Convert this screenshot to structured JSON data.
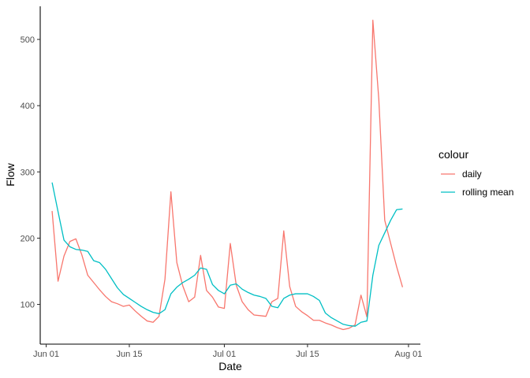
{
  "chart_data": {
    "type": "line",
    "xlabel": "Date",
    "ylabel": "Flow",
    "x_ticks": [
      {
        "date": "2021-06-01",
        "label": "Jun 01"
      },
      {
        "date": "2021-06-15",
        "label": "Jun 15"
      },
      {
        "date": "2021-07-01",
        "label": "Jul 01"
      },
      {
        "date": "2021-07-15",
        "label": "Jul 15"
      },
      {
        "date": "2021-08-01",
        "label": "Aug 01"
      }
    ],
    "y_ticks": [
      100,
      200,
      300,
      400,
      500
    ],
    "ylim": [
      40,
      550
    ],
    "xlim": [
      "2021-05-31",
      "2021-08-03"
    ],
    "grid": false,
    "legend": {
      "title": "colour",
      "position": "right"
    },
    "series": [
      {
        "name": "daily",
        "color": "#F8766D",
        "points": [
          [
            "2021-06-02",
            241
          ],
          [
            "2021-06-03",
            135
          ],
          [
            "2021-06-04",
            173
          ],
          [
            "2021-06-05",
            195
          ],
          [
            "2021-06-06",
            199
          ],
          [
            "2021-06-07",
            175
          ],
          [
            "2021-06-08",
            144
          ],
          [
            "2021-06-09",
            133
          ],
          [
            "2021-06-10",
            122
          ],
          [
            "2021-06-11",
            112
          ],
          [
            "2021-06-12",
            104
          ],
          [
            "2021-06-13",
            101
          ],
          [
            "2021-06-14",
            97
          ],
          [
            "2021-06-15",
            99
          ],
          [
            "2021-06-16",
            90
          ],
          [
            "2021-06-17",
            82
          ],
          [
            "2021-06-18",
            75
          ],
          [
            "2021-06-19",
            73
          ],
          [
            "2021-06-20",
            82
          ],
          [
            "2021-06-21",
            138
          ],
          [
            "2021-06-22",
            270
          ],
          [
            "2021-06-23",
            163
          ],
          [
            "2021-06-24",
            128
          ],
          [
            "2021-06-25",
            104
          ],
          [
            "2021-06-26",
            111
          ],
          [
            "2021-06-27",
            174
          ],
          [
            "2021-06-28",
            121
          ],
          [
            "2021-06-29",
            111
          ],
          [
            "2021-06-30",
            96
          ],
          [
            "2021-07-01",
            94
          ],
          [
            "2021-07-02",
            192
          ],
          [
            "2021-07-03",
            129
          ],
          [
            "2021-07-04",
            104
          ],
          [
            "2021-07-05",
            92
          ],
          [
            "2021-07-06",
            84
          ],
          [
            "2021-07-07",
            83
          ],
          [
            "2021-07-08",
            82
          ],
          [
            "2021-07-09",
            104
          ],
          [
            "2021-07-10",
            109
          ],
          [
            "2021-07-11",
            211
          ],
          [
            "2021-07-12",
            127
          ],
          [
            "2021-07-13",
            97
          ],
          [
            "2021-07-14",
            89
          ],
          [
            "2021-07-15",
            83
          ],
          [
            "2021-07-16",
            76
          ],
          [
            "2021-07-17",
            76
          ],
          [
            "2021-07-18",
            72
          ],
          [
            "2021-07-19",
            69
          ],
          [
            "2021-07-20",
            65
          ],
          [
            "2021-07-21",
            62
          ],
          [
            "2021-07-22",
            64
          ],
          [
            "2021-07-23",
            69
          ],
          [
            "2021-07-24",
            114
          ],
          [
            "2021-07-25",
            81
          ],
          [
            "2021-07-26",
            529
          ],
          [
            "2021-07-27",
            410
          ],
          [
            "2021-07-28",
            227
          ],
          [
            "2021-07-29",
            192
          ],
          [
            "2021-07-30",
            157
          ],
          [
            "2021-07-31",
            126
          ]
        ]
      },
      {
        "name": "rolling mean",
        "color": "#00BFC4",
        "points": [
          [
            "2021-06-02",
            284
          ],
          [
            "2021-06-03",
            240
          ],
          [
            "2021-06-04",
            197
          ],
          [
            "2021-06-05",
            187
          ],
          [
            "2021-06-06",
            183
          ],
          [
            "2021-06-07",
            182
          ],
          [
            "2021-06-08",
            180
          ],
          [
            "2021-06-09",
            166
          ],
          [
            "2021-06-10",
            163
          ],
          [
            "2021-06-11",
            153
          ],
          [
            "2021-06-12",
            139
          ],
          [
            "2021-06-13",
            125
          ],
          [
            "2021-06-14",
            115
          ],
          [
            "2021-06-15",
            109
          ],
          [
            "2021-06-16",
            103
          ],
          [
            "2021-06-17",
            97
          ],
          [
            "2021-06-18",
            92
          ],
          [
            "2021-06-19",
            88
          ],
          [
            "2021-06-20",
            86
          ],
          [
            "2021-06-21",
            92
          ],
          [
            "2021-06-22",
            116
          ],
          [
            "2021-06-23",
            126
          ],
          [
            "2021-06-24",
            133
          ],
          [
            "2021-06-25",
            138
          ],
          [
            "2021-06-26",
            144
          ],
          [
            "2021-06-27",
            155
          ],
          [
            "2021-06-28",
            153
          ],
          [
            "2021-06-29",
            130
          ],
          [
            "2021-06-30",
            121
          ],
          [
            "2021-07-01",
            116
          ],
          [
            "2021-07-02",
            129
          ],
          [
            "2021-07-03",
            131
          ],
          [
            "2021-07-04",
            123
          ],
          [
            "2021-07-05",
            118
          ],
          [
            "2021-07-06",
            114
          ],
          [
            "2021-07-07",
            112
          ],
          [
            "2021-07-08",
            109
          ],
          [
            "2021-07-09",
            97
          ],
          [
            "2021-07-10",
            95
          ],
          [
            "2021-07-11",
            109
          ],
          [
            "2021-07-12",
            114
          ],
          [
            "2021-07-13",
            116
          ],
          [
            "2021-07-14",
            116
          ],
          [
            "2021-07-15",
            116
          ],
          [
            "2021-07-16",
            112
          ],
          [
            "2021-07-17",
            106
          ],
          [
            "2021-07-18",
            87
          ],
          [
            "2021-07-19",
            80
          ],
          [
            "2021-07-20",
            75
          ],
          [
            "2021-07-21",
            70
          ],
          [
            "2021-07-22",
            68
          ],
          [
            "2021-07-23",
            67
          ],
          [
            "2021-07-24",
            73
          ],
          [
            "2021-07-25",
            75
          ],
          [
            "2021-07-26",
            144
          ],
          [
            "2021-07-27",
            189
          ],
          [
            "2021-07-28",
            208
          ],
          [
            "2021-07-29",
            227
          ],
          [
            "2021-07-30",
            243
          ],
          [
            "2021-07-31",
            244
          ]
        ]
      }
    ]
  }
}
